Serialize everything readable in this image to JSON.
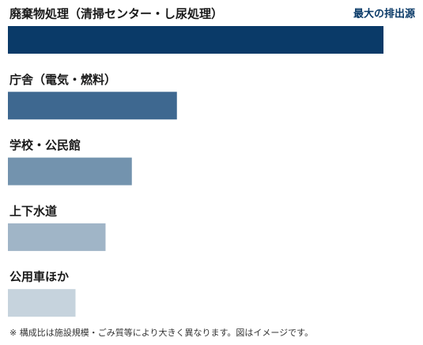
{
  "chart_data": {
    "type": "bar",
    "orientation": "horizontal",
    "annotation": "最大の排出源",
    "categories": [
      "廃棄物処理（清掃センター・し尿処理）",
      "庁舎（電気・燃料）",
      "学校・公民館",
      "上下水道",
      "公用車ほか"
    ],
    "values": [
      100,
      45,
      33,
      26,
      18
    ],
    "colors": [
      "#0a3a68",
      "#3e6890",
      "#7393ae",
      "#a0b5c7",
      "#c6d3dd"
    ],
    "xlim": [
      0,
      100
    ],
    "note": "※ 構成比は施設規模・ごみ質等により大きく異なります。図はイメージです。"
  }
}
